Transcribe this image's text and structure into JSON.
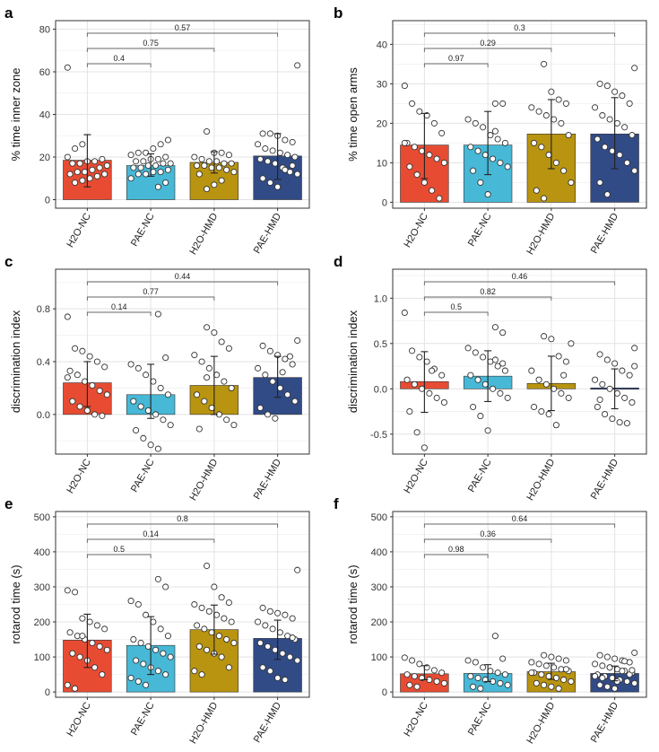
{
  "figure": {
    "colors": {
      "H2O-NC": "#e74c33",
      "PAE-NC": "#47b8d6",
      "H2O-HMD": "#b89410",
      "PAE-HMD": "#314b86"
    }
  },
  "chart_data": [
    {
      "panel": "a",
      "type": "bar",
      "categories": [
        "H2O-NC",
        "PAE-NC",
        "H2O-HMD",
        "PAE-HMD"
      ],
      "ylabel": "% time inner zone",
      "ylim": [
        -4,
        84
      ],
      "yticks": [
        0,
        20,
        40,
        60,
        80
      ],
      "values": [
        18.5,
        16,
        17.5,
        20.5
      ],
      "errors": [
        [
          6,
          30.5
        ],
        [
          11,
          21.5
        ],
        [
          12.5,
          22.5
        ],
        [
          9.5,
          31
        ]
      ],
      "points": [
        [
          62,
          8,
          9,
          10,
          11,
          12,
          12,
          13,
          13,
          14,
          15,
          16,
          17,
          17,
          18,
          18,
          19,
          20,
          24,
          26
        ],
        [
          6,
          8,
          10,
          12,
          12,
          13,
          13,
          14,
          15,
          15,
          16,
          16,
          17,
          17,
          18,
          18,
          19,
          19,
          20,
          21,
          22,
          22,
          24,
          26,
          28
        ],
        [
          32,
          22,
          22,
          21,
          20,
          19,
          18,
          18,
          17,
          17,
          16,
          16,
          15,
          15,
          14,
          13,
          12,
          5,
          7,
          9
        ],
        [
          63,
          31,
          31,
          30,
          28,
          27,
          26,
          24,
          23,
          22,
          21,
          20,
          19,
          18,
          17,
          15,
          13,
          12,
          10,
          8,
          6,
          14,
          16
        ]
      ],
      "comparisons": [
        {
          "from": "H2O-NC",
          "to": "PAE-NC",
          "p": "0.4"
        },
        {
          "from": "H2O-NC",
          "to": "H2O-HMD",
          "p": "0.75"
        },
        {
          "from": "H2O-NC",
          "to": "PAE-HMD",
          "p": "0.57"
        }
      ]
    },
    {
      "panel": "b",
      "type": "bar",
      "categories": [
        "H2O-NC",
        "PAE-NC",
        "H2O-HMD",
        "PAE-HMD"
      ],
      "ylabel": "% time open arms",
      "ylim": [
        -1.5,
        46
      ],
      "yticks": [
        0,
        10,
        20,
        30,
        40
      ],
      "values": [
        14.5,
        14.5,
        17.3,
        17.3
      ],
      "errors": [
        [
          6,
          22.5
        ],
        [
          7,
          23
        ],
        [
          8.5,
          26
        ],
        [
          8.5,
          26.5
        ]
      ],
      "points": [
        [
          29.5,
          25,
          23,
          22,
          20,
          17.5,
          15,
          14,
          13,
          12,
          11,
          10,
          9,
          7,
          5,
          3,
          1,
          15
        ],
        [
          25,
          25,
          21,
          20,
          19,
          17,
          16,
          15,
          14,
          13,
          12,
          11,
          10,
          9,
          8,
          5,
          2,
          18
        ],
        [
          35,
          28,
          26,
          25,
          24,
          23,
          22,
          21,
          20,
          17,
          15,
          14,
          12,
          10,
          8,
          5,
          3,
          1
        ],
        [
          34,
          30,
          29.5,
          28,
          27,
          25,
          24,
          22,
          21,
          20,
          19,
          17,
          16,
          14,
          13,
          12,
          10,
          8,
          5,
          2
        ]
      ],
      "comparisons": [
        {
          "from": "H2O-NC",
          "to": "PAE-NC",
          "p": "0.97"
        },
        {
          "from": "H2O-NC",
          "to": "H2O-HMD",
          "p": "0.29"
        },
        {
          "from": "H2O-NC",
          "to": "PAE-HMD",
          "p": "0.3"
        }
      ]
    },
    {
      "panel": "c",
      "type": "bar",
      "categories": [
        "H2O-NC",
        "PAE-NC",
        "H2O-HMD",
        "PAE-HMD"
      ],
      "ylabel": "discrimination index",
      "ylim": [
        -0.3,
        1.1
      ],
      "yticks": [
        0.0,
        0.4,
        0.8
      ],
      "yticklabels": [
        "0.0",
        "0.4",
        "0.8"
      ],
      "values": [
        0.24,
        0.15,
        0.22,
        0.28
      ],
      "errors": [
        [
          0.06,
          0.4
        ],
        [
          -0.03,
          0.38
        ],
        [
          0.0,
          0.44
        ],
        [
          0.13,
          0.44
        ]
      ],
      "points": [
        [
          0.74,
          0.5,
          0.48,
          0.44,
          0.4,
          0.36,
          0.33,
          0.3,
          0.25,
          0.22,
          0.18,
          0.15,
          0.1,
          0.06,
          0.03,
          0.0,
          -0.01,
          0.28
        ],
        [
          0.76,
          0.43,
          0.38,
          0.35,
          0.3,
          0.25,
          0.2,
          0.15,
          0.1,
          0.06,
          0.03,
          0.0,
          -0.04,
          -0.08,
          -0.12,
          -0.18,
          -0.23,
          -0.26
        ],
        [
          0.66,
          0.62,
          0.55,
          0.5,
          0.45,
          0.4,
          0.35,
          0.3,
          0.25,
          0.2,
          0.15,
          0.1,
          0.05,
          0.0,
          -0.04,
          -0.08,
          -0.11,
          0.28
        ],
        [
          0.56,
          0.52,
          0.48,
          0.45,
          0.42,
          0.38,
          0.35,
          0.3,
          0.25,
          0.2,
          0.15,
          0.1,
          0.05,
          0.0,
          -0.03,
          0.32,
          0.44
        ]
      ],
      "comparisons": [
        {
          "from": "H2O-NC",
          "to": "PAE-NC",
          "p": "0.14"
        },
        {
          "from": "H2O-NC",
          "to": "H2O-HMD",
          "p": "0.77"
        },
        {
          "from": "H2O-NC",
          "to": "PAE-HMD",
          "p": "0.44"
        }
      ]
    },
    {
      "panel": "d",
      "type": "bar",
      "categories": [
        "H2O-NC",
        "PAE-NC",
        "H2O-HMD",
        "PAE-HMD"
      ],
      "ylabel": "discrimination index",
      "ylim": [
        -0.72,
        1.32
      ],
      "yticks": [
        -0.5,
        0.0,
        0.5,
        1.0
      ],
      "yticklabels": [
        "-0.5",
        "0.0",
        "0.5",
        "1.0"
      ],
      "values": [
        0.08,
        0.14,
        0.06,
        0.01
      ],
      "errors": [
        [
          -0.26,
          0.41
        ],
        [
          -0.14,
          0.42
        ],
        [
          -0.24,
          0.36
        ],
        [
          -0.22,
          0.22
        ]
      ],
      "points": [
        [
          0.84,
          0.42,
          0.35,
          0.3,
          0.22,
          0.15,
          0.1,
          0.05,
          0.0,
          -0.05,
          -0.1,
          -0.15,
          -0.25,
          -0.48,
          -0.65,
          0.2
        ],
        [
          0.68,
          0.62,
          0.45,
          0.4,
          0.35,
          0.3,
          0.25,
          0.2,
          0.15,
          0.1,
          0.05,
          0.0,
          -0.05,
          -0.1,
          -0.2,
          -0.3,
          -0.46,
          0.32,
          0.28
        ],
        [
          0.58,
          0.55,
          0.36,
          0.3,
          0.2,
          0.1,
          0.05,
          0.0,
          -0.05,
          -0.1,
          -0.2,
          -0.25,
          -0.28,
          -0.4,
          0.15,
          0.5
        ],
        [
          0.45,
          0.38,
          0.32,
          0.28,
          0.2,
          0.15,
          0.1,
          0.05,
          0.0,
          -0.05,
          -0.1,
          -0.15,
          -0.2,
          -0.28,
          -0.33,
          -0.37,
          -0.38,
          0.25,
          -0.12
        ]
      ],
      "comparisons": [
        {
          "from": "H2O-NC",
          "to": "PAE-NC",
          "p": "0.5"
        },
        {
          "from": "H2O-NC",
          "to": "H2O-HMD",
          "p": "0.82"
        },
        {
          "from": "H2O-NC",
          "to": "PAE-HMD",
          "p": "0.46"
        }
      ]
    },
    {
      "panel": "e",
      "type": "bar",
      "categories": [
        "H2O-NC",
        "PAE-NC",
        "H2O-HMD",
        "PAE-HMD"
      ],
      "ylabel": "rotarod time (s)",
      "ylim": [
        -15,
        515
      ],
      "yticks": [
        0,
        100,
        200,
        300,
        400,
        500
      ],
      "values": [
        148,
        133,
        178,
        153
      ],
      "errors": [
        [
          70,
          222
        ],
        [
          50,
          215
        ],
        [
          108,
          248
        ],
        [
          93,
          205
        ]
      ],
      "points": [
        [
          290,
          285,
          210,
          200,
          190,
          180,
          170,
          160,
          150,
          140,
          130,
          120,
          110,
          100,
          90,
          70,
          50,
          20,
          10,
          160
        ],
        [
          322,
          300,
          260,
          250,
          220,
          200,
          180,
          160,
          150,
          140,
          130,
          120,
          110,
          100,
          90,
          80,
          70,
          60,
          50,
          40,
          30,
          20
        ],
        [
          360,
          300,
          270,
          255,
          250,
          240,
          230,
          220,
          210,
          200,
          190,
          180,
          170,
          160,
          150,
          140,
          130,
          120,
          110,
          100,
          70,
          60,
          50
        ],
        [
          348,
          240,
          230,
          225,
          220,
          210,
          200,
          190,
          180,
          170,
          160,
          150,
          140,
          130,
          120,
          110,
          100,
          90,
          70,
          60,
          40,
          35,
          155
        ]
      ],
      "comparisons": [
        {
          "from": "H2O-NC",
          "to": "PAE-NC",
          "p": "0.5"
        },
        {
          "from": "H2O-NC",
          "to": "H2O-HMD",
          "p": "0.14"
        },
        {
          "from": "H2O-NC",
          "to": "PAE-HMD",
          "p": "0.8"
        }
      ]
    },
    {
      "panel": "f",
      "type": "bar",
      "categories": [
        "H2O-NC",
        "PAE-NC",
        "H2O-HMD",
        "PAE-HMD"
      ],
      "ylabel": "rotarod time (s)",
      "ylim": [
        -15,
        515
      ],
      "yticks": [
        0,
        100,
        200,
        300,
        400,
        500
      ],
      "values": [
        52,
        53,
        58,
        53
      ],
      "errors": [
        [
          35,
          75
        ],
        [
          30,
          78
        ],
        [
          36,
          82
        ],
        [
          32,
          74
        ]
      ],
      "points": [
        [
          98,
          90,
          80,
          70,
          62,
          55,
          50,
          45,
          40,
          35,
          30,
          25,
          20,
          15
        ],
        [
          160,
          95,
          90,
          85,
          70,
          60,
          55,
          50,
          45,
          40,
          35,
          30,
          25,
          20,
          15,
          10
        ],
        [
          105,
          100,
          95,
          90,
          85,
          80,
          75,
          70,
          65,
          60,
          55,
          50,
          45,
          40,
          35,
          30,
          25,
          20,
          15,
          10,
          65,
          55
        ],
        [
          112,
          105,
          100,
          95,
          90,
          85,
          80,
          75,
          70,
          65,
          60,
          55,
          50,
          45,
          40,
          35,
          30,
          25,
          20,
          15,
          10,
          60,
          50,
          45,
          40,
          70,
          30,
          88,
          62
        ]
      ],
      "comparisons": [
        {
          "from": "H2O-NC",
          "to": "PAE-NC",
          "p": "0.98"
        },
        {
          "from": "H2O-NC",
          "to": "H2O-HMD",
          "p": "0.36"
        },
        {
          "from": "H2O-NC",
          "to": "PAE-HMD",
          "p": "0.64"
        }
      ]
    }
  ]
}
